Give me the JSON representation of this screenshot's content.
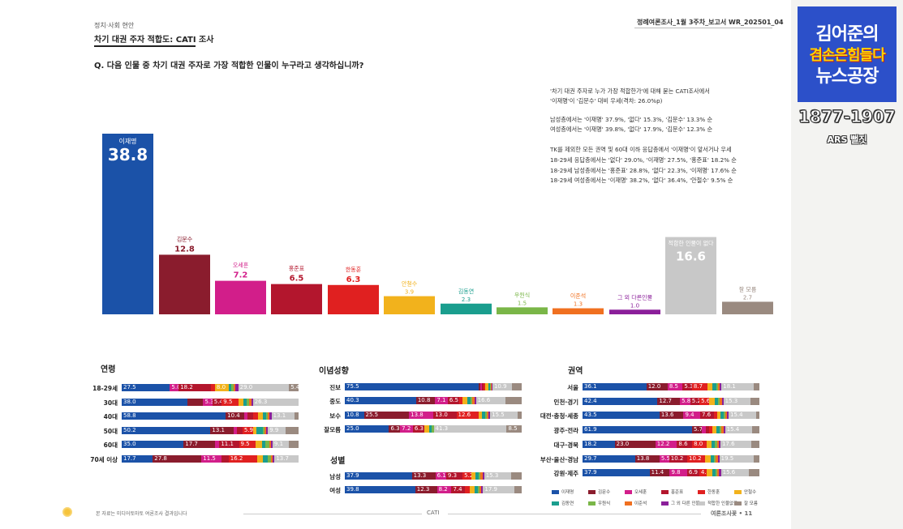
{
  "header": {
    "meta": "정례여론조사_1월 3주차_보고서   WR_202501_04",
    "section": "정치·사회 현안",
    "title": "차기 대권 주자 적합도: CATI 조사",
    "question": "Q. 다음 인물 중 차기 대권 주자로 가장 적합한 인물이 누구라고 생각하십니까?"
  },
  "notes": [
    "'차기 대권 주자로 누가 가장 적합한가'에 대해 묻는 CATI조사에서",
    "'이재명'이 '김문수' 대비 우세(격차: 26.0%p)",
    "남성층에서는 '이재명' 37.9%, '없다' 15.3%, '김문수' 13.3% 순",
    "여성층에서는 '이재명' 39.8%, '없다' 17.9%, '김문수' 12.3% 순",
    "TK를 제외한 모든 권역 및 60대 이하 응답층에서 '이재명'이 앞서거나 우세",
    "18-29세 응답층에서는 '없다' 29.0%, '이재명' 27.5%, '홍준표' 18.2% 순",
    "18-29세 남성층에서는 '홍준표' 28.8%, '없다' 22.3%, '이재명' 17.6% 순",
    "18-29세 여성층에서는 '이재명' 38.2%, '없다' 36.4%, '안철수' 9.5% 순"
  ],
  "colors": [
    "#1b52a8",
    "#8a1c2d",
    "#d21e8a",
    "#b3162d",
    "#e02020",
    "#f2b21c",
    "#1a9e8e",
    "#7ab648",
    "#f07020",
    "#8b1f9a",
    "#c8c8c8",
    "#9a8a80"
  ],
  "chart_data": [
    {
      "type": "bar",
      "title": "차기 대권 주자 적합도",
      "categories": [
        "이재명",
        "김문수",
        "오세훈",
        "홍준표",
        "한동훈",
        "안철수",
        "김동연",
        "우원식",
        "이준석",
        "그 외 다른인물",
        "적합한 인물이 없다",
        "잘 모름"
      ],
      "values": [
        38.8,
        12.8,
        7.2,
        6.5,
        6.3,
        3.9,
        2.3,
        1.5,
        1.3,
        1.0,
        16.6,
        2.7
      ],
      "ylim": [
        0,
        40
      ]
    },
    {
      "type": "bar",
      "stacked": true,
      "orientation": "horizontal",
      "title": "연령",
      "categories": [
        "18-29세",
        "30대",
        "40대",
        "50대",
        "60대",
        "70세 이상"
      ],
      "series_values": [
        [
          27.5,
          0,
          5.0,
          18.2,
          2.5,
          8.0,
          1.5,
          1.0,
          1.3,
          1.5,
          29.0,
          5.4
        ],
        [
          38.0,
          9.0,
          5.3,
          5.4,
          9.5,
          3.0,
          2.0,
          1.5,
          1.0,
          1.0,
          26.3,
          0
        ],
        [
          58.8,
          10.4,
          2.0,
          3.0,
          3.0,
          2.5,
          2.0,
          1.0,
          1.0,
          1.0,
          13.1,
          2.2
        ],
        [
          50.2,
          13.1,
          2.0,
          3.0,
          5.9,
          2.0,
          3.5,
          1.0,
          1.0,
          1.0,
          9.9,
          7.4
        ],
        [
          35.0,
          17.7,
          2.5,
          11.1,
          9.5,
          3.5,
          2.0,
          2.0,
          1.0,
          1.0,
          9.1,
          5.6
        ],
        [
          17.7,
          27.8,
          11.5,
          4.0,
          16.2,
          3.5,
          2.5,
          2.0,
          1.0,
          1.0,
          13.7,
          0
        ]
      ],
      "shown_labels": [
        [
          "27.5",
          "",
          "5.0",
          "18.2",
          "",
          "8.0",
          "",
          "",
          "",
          "",
          "29.0",
          "5.4"
        ],
        [
          "38.0",
          "",
          "5.3",
          "5.4",
          "9.5",
          "",
          "",
          "",
          "",
          "",
          "26.3",
          ""
        ],
        [
          "58.8",
          "10.4",
          "",
          "",
          "",
          "",
          "",
          "",
          "",
          "",
          "13.1",
          ""
        ],
        [
          "50.2",
          "13.1",
          "",
          "",
          "5.9",
          "",
          "",
          "",
          "",
          "",
          "9.9",
          ""
        ],
        [
          "35.0",
          "17.7",
          "",
          "11.1",
          "9.5",
          "",
          "",
          "",
          "",
          "",
          "9.1",
          ""
        ],
        [
          "17.7",
          "27.8",
          "11.5",
          "",
          "16.2",
          "",
          "",
          "",
          "",
          "",
          "13.7",
          ""
        ]
      ]
    },
    {
      "type": "bar",
      "stacked": true,
      "orientation": "horizontal",
      "title": "이념성향",
      "categories": [
        "진보",
        "중도",
        "보수",
        "잘모름"
      ],
      "series_values": [
        [
          75.5,
          1.0,
          1.0,
          1.0,
          1.0,
          1.5,
          1.0,
          0.5,
          0.5,
          0.5,
          10.9,
          5.6
        ],
        [
          40.3,
          10.8,
          7.1,
          6.5,
          2.0,
          2.5,
          2.0,
          1.0,
          1.0,
          1.0,
          16.6,
          9.2
        ],
        [
          10.8,
          25.5,
          13.8,
          13.0,
          12.6,
          2.0,
          1.5,
          1.0,
          1.0,
          1.0,
          15.5,
          2.3
        ],
        [
          25.0,
          6.3,
          7.2,
          6.3,
          0,
          3.0,
          1.5,
          1.0,
          0,
          0,
          41.3,
          8.5
        ]
      ],
      "shown_labels": [
        [
          "75.5",
          "",
          "",
          "",
          "",
          "",
          "",
          "",
          "",
          "",
          "10.9",
          ""
        ],
        [
          "40.3",
          "10.8",
          "7.1",
          "6.5",
          "",
          "",
          "",
          "",
          "",
          "",
          "16.6",
          ""
        ],
        [
          "10.8",
          "25.5",
          "13.8",
          "13.0",
          "12.6",
          "",
          "",
          "",
          "",
          "",
          "15.5",
          ""
        ],
        [
          "25.0",
          "6.3",
          "7.2",
          "6.3",
          "",
          "",
          "",
          "",
          "",
          "",
          "41.3",
          "8.5"
        ]
      ]
    },
    {
      "type": "bar",
      "stacked": true,
      "orientation": "horizontal",
      "title": "성별",
      "categories": [
        "남성",
        "여성"
      ],
      "series_values": [
        [
          37.9,
          13.3,
          6.1,
          9.3,
          5.2,
          2.0,
          2.0,
          1.0,
          1.0,
          1.0,
          15.3,
          5.9
        ],
        [
          39.8,
          12.3,
          8.2,
          7.4,
          3.0,
          2.5,
          2.0,
          1.0,
          1.0,
          1.0,
          17.9,
          3.9
        ]
      ],
      "shown_labels": [
        [
          "37.9",
          "13.3",
          "6.1",
          "9.3",
          "5.2",
          "",
          "",
          "",
          "",
          "",
          "15.3",
          ""
        ],
        [
          "39.8",
          "12.3",
          "8.2",
          "7.4",
          "",
          "",
          "",
          "",
          "",
          "",
          "17.9",
          ""
        ]
      ]
    },
    {
      "type": "bar",
      "stacked": true,
      "orientation": "horizontal",
      "title": "권역",
      "categories": [
        "서울",
        "인천·경기",
        "대전·충청·세종",
        "광주·전라",
        "대구·경북",
        "부산·울산·경남",
        "강원·제주"
      ],
      "series_values": [
        [
          36.1,
          12.0,
          8.5,
          5.3,
          8.7,
          3.0,
          2.0,
          1.0,
          1.0,
          1.0,
          18.1,
          3.3
        ],
        [
          42.4,
          12.7,
          5.8,
          5.2,
          5.6,
          3.0,
          2.0,
          1.0,
          1.0,
          1.0,
          15.3,
          5.0
        ],
        [
          43.5,
          13.6,
          9.4,
          7.6,
          2.0,
          2.0,
          1.5,
          1.0,
          1.0,
          1.0,
          15.4,
          2.0
        ],
        [
          61.9,
          5.7,
          2.0,
          2.0,
          2.0,
          2.0,
          2.0,
          1.0,
          1.0,
          1.0,
          15.4,
          4.0
        ],
        [
          18.2,
          23.0,
          12.2,
          8.6,
          8.0,
          3.0,
          2.0,
          1.0,
          1.0,
          1.0,
          17.6,
          4.4
        ],
        [
          29.7,
          13.8,
          5.5,
          10.2,
          10.2,
          3.0,
          2.0,
          1.0,
          1.0,
          1.0,
          19.5,
          3.1
        ],
        [
          37.9,
          11.4,
          9.8,
          6.9,
          4.3,
          3.0,
          2.0,
          1.0,
          1.0,
          1.0,
          15.6,
          6.1
        ]
      ],
      "shown_labels": [
        [
          "36.1",
          "12.0",
          "8.5",
          "5.3",
          "8.7",
          "",
          "",
          "",
          "",
          "",
          "18.1",
          ""
        ],
        [
          "42.4",
          "12.7",
          "5.8",
          "5.2",
          "5.6",
          "",
          "",
          "",
          "",
          "",
          "15.3",
          ""
        ],
        [
          "43.5",
          "13.6",
          "9.4",
          "7.6",
          "",
          "",
          "",
          "",
          "",
          "",
          "15.4",
          ""
        ],
        [
          "61.9",
          "5.7",
          "",
          "",
          "",
          "",
          "",
          "",
          "",
          "",
          "15.4",
          ""
        ],
        [
          "18.2",
          "23.0",
          "12.2",
          "8.6",
          "8.0",
          "",
          "",
          "",
          "",
          "",
          "17.6",
          ""
        ],
        [
          "29.7",
          "13.8",
          "5.5",
          "10.2",
          "10.2",
          "",
          "",
          "",
          "",
          "",
          "19.5",
          ""
        ],
        [
          "37.9",
          "11.4",
          "9.8",
          "6.9",
          "4.3",
          "",
          "",
          "",
          "",
          "",
          "15.6",
          ""
        ]
      ]
    }
  ],
  "legend": [
    "이재명",
    "김문수",
    "오세훈",
    "홍준표",
    "한동훈",
    "안철수",
    "김동연",
    "우원식",
    "이준석",
    "그 외 다른 인물",
    "적합한 인물없음",
    "잘 모름"
  ],
  "footer": {
    "source": "본 자료는 미디어토마토 여론조사 결과입니다",
    "method": "CATI",
    "page": "여론조사꽃 • 11"
  },
  "logo": {
    "line1": "김어준의",
    "line2": "겸손은힘들다",
    "line3": "뉴스공장",
    "episode": "1877-1907",
    "ars": "ARS 뻘짓"
  }
}
